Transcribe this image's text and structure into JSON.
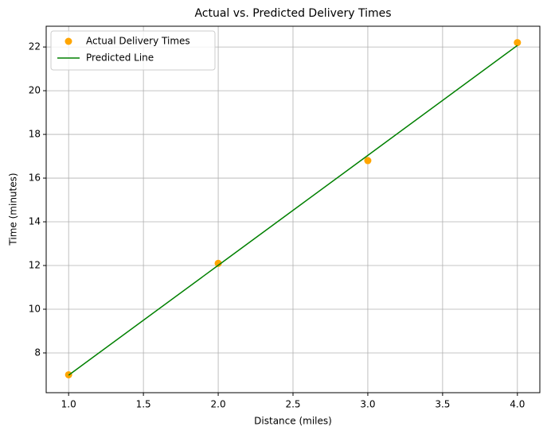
{
  "chart_data": {
    "type": "line",
    "title": "Actual vs. Predicted Delivery Times",
    "x_label": "Distance (miles)",
    "y_label": "Time (minutes)",
    "x": [
      1,
      2,
      3,
      4
    ],
    "series": [
      {
        "name": "Actual Delivery Times",
        "color": "#ffa500",
        "values": [
          7.0,
          12.1,
          16.8,
          22.2
        ],
        "marker": true,
        "line": false
      },
      {
        "name": "Predicted Line",
        "color": "#008000",
        "values": [
          6.98,
          12.01,
          17.04,
          22.07
        ],
        "marker": false,
        "line": true
      }
    ],
    "xlim": [
      0.85,
      4.15
    ],
    "xticks": [
      {
        "value": 1,
        "label": "1.0"
      },
      1.5,
      {
        "value": 2,
        "label": "2.0"
      },
      2.5,
      {
        "value": 3,
        "label": "3.0"
      },
      3.5,
      {
        "value": 4,
        "label": "4.0"
      }
    ],
    "ylim": [
      6.18,
      22.95
    ],
    "yticks": [
      8,
      10,
      12,
      14,
      16,
      18,
      20,
      22
    ],
    "grid": true,
    "legend": "upper left"
  }
}
